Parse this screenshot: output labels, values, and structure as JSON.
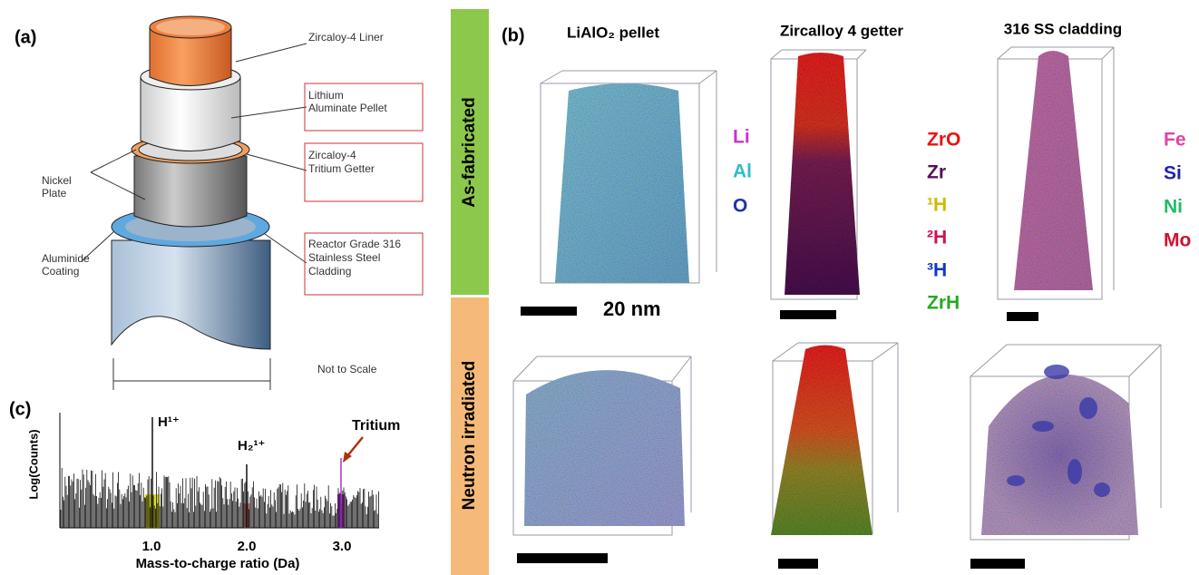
{
  "panel_a": {
    "label": "(a)",
    "callouts": {
      "liner": "Zircaloy-4 Liner",
      "pellet": "Lithium Aluminate Pellet",
      "getter": "Zircaloy-4 Tritium Getter",
      "nickel": "Nickel Plate",
      "coating": "Aluminide Coating",
      "cladding": "Reactor Grade 316 Stainless Steel Cladding"
    },
    "note": "Not to Scale"
  },
  "panel_b": {
    "label": "(b)",
    "rows": [
      "As-fabricated",
      "Neutron irradiated"
    ],
    "columns": [
      "LiAlO₂ pellet",
      "Zircalloy 4 getter",
      "316 SS cladding"
    ],
    "scale_label": "20 nm",
    "legends": [
      [
        {
          "name": "Li",
          "color": "#cc33cc"
        },
        {
          "name": "Al",
          "color": "#33bbcc"
        },
        {
          "name": "O",
          "color": "#2233aa"
        }
      ],
      [
        {
          "name": "ZrO",
          "color": "#ee1111"
        },
        {
          "name": "Zr",
          "color": "#551155"
        },
        {
          "name": "¹H",
          "color": "#ccbb00"
        },
        {
          "name": "²H",
          "color": "#cc1155"
        },
        {
          "name": "³H",
          "color": "#1133cc"
        },
        {
          "name": "ZrH",
          "color": "#22aa22"
        }
      ],
      [
        {
          "name": "Fe",
          "color": "#dd44aa"
        },
        {
          "name": "Si",
          "color": "#2222aa"
        },
        {
          "name": "Ni",
          "color": "#22bb66"
        },
        {
          "name": "Mo",
          "color": "#cc1133"
        }
      ]
    ]
  },
  "panel_c": {
    "label": "(c)",
    "y_label": "Log(Counts)",
    "x_label": "Mass-to-charge ratio (Da)",
    "x_ticks": [
      "1.0",
      "2.0",
      "3.0"
    ],
    "peaks": [
      "H¹⁺",
      "H₂¹⁺",
      "Tritium"
    ]
  }
}
